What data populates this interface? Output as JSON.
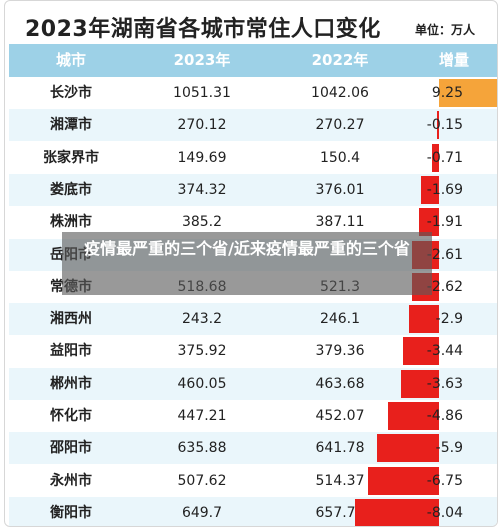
{
  "title": "2023年湖南省各城市常住人口变化",
  "unit": "单位：万人",
  "overlay_text": "疫情最严重的三个省/近来疫情最严重的三个省",
  "colors": {
    "header": "#9dd1e7",
    "positive": "#f5a43a",
    "negative": "#e8201c",
    "row_alt": "#eaf6fb"
  },
  "chart_data": {
    "type": "table",
    "columns": [
      "城市",
      "2023年",
      "2022年",
      "增量"
    ],
    "rows": [
      {
        "city": "长沙市",
        "y2023": "1051.31",
        "y2022": "1042.06",
        "change": "9.25",
        "value": 9.25
      },
      {
        "city": "湘潭市",
        "y2023": "270.12",
        "y2022": "270.27",
        "change": "-0.15",
        "value": -0.15
      },
      {
        "city": "张家界市",
        "y2023": "149.69",
        "y2022": "150.4",
        "change": "-0.71",
        "value": -0.71
      },
      {
        "city": "娄底市",
        "y2023": "374.32",
        "y2022": "376.01",
        "change": "-1.69",
        "value": -1.69
      },
      {
        "city": "株洲市",
        "y2023": "385.2",
        "y2022": "387.11",
        "change": "-1.91",
        "value": -1.91
      },
      {
        "city": "岳阳市",
        "y2023": "",
        "y2022": "",
        "change": "-2.61",
        "value": -2.61
      },
      {
        "city": "常德市",
        "y2023": "518.68",
        "y2022": "521.3",
        "change": "-2.62",
        "value": -2.62
      },
      {
        "city": "湘西州",
        "y2023": "243.2",
        "y2022": "246.1",
        "change": "-2.9",
        "value": -2.9
      },
      {
        "city": "益阳市",
        "y2023": "375.92",
        "y2022": "379.36",
        "change": "-3.44",
        "value": -3.44
      },
      {
        "city": "郴州市",
        "y2023": "460.05",
        "y2022": "463.68",
        "change": "-3.63",
        "value": -3.63
      },
      {
        "city": "怀化市",
        "y2023": "447.21",
        "y2022": "452.07",
        "change": "-4.86",
        "value": -4.86
      },
      {
        "city": "邵阳市",
        "y2023": "635.88",
        "y2022": "641.78",
        "change": "-5.9",
        "value": -5.9
      },
      {
        "city": "永州市",
        "y2023": "507.62",
        "y2022": "514.37",
        "change": "-6.75",
        "value": -6.75
      },
      {
        "city": "衡阳市",
        "y2023": "649.7",
        "y2022": "657.74",
        "change": "-8.04",
        "value": -8.04
      }
    ]
  }
}
